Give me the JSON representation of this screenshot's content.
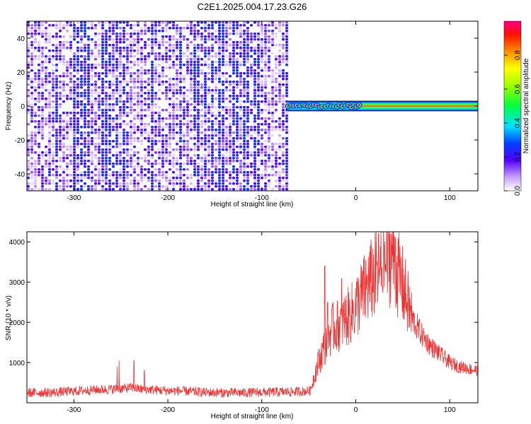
{
  "title": "C2E1.2025.004.17.23.G26",
  "chart_data": [
    {
      "type": "heatmap",
      "title": "C2E1.2025.004.17.23.G26",
      "xlabel": "Height of straight line (km)",
      "ylabel": "Frequency (Hz)",
      "xlim": [
        -350,
        130
      ],
      "ylim": [
        -50,
        50
      ],
      "x_ticks": [
        -300,
        -200,
        -100,
        0,
        100
      ],
      "y_ticks": [
        -40,
        -20,
        0,
        20,
        40
      ],
      "noise_region_x": [
        -350,
        -72
      ],
      "noise_level_range": [
        0.0,
        0.25
      ],
      "tracked_line": {
        "frequency": 0,
        "x_start": -72,
        "dots_x_range": [
          -72,
          5
        ],
        "dot_level": 1.0,
        "band_level": 0.55
      },
      "colorbar": {
        "label": "Normalized spectral amplitude",
        "range": [
          0.0,
          1.0
        ],
        "ticks": [
          0.0,
          0.2,
          0.4,
          0.6,
          0.8
        ]
      }
    },
    {
      "type": "line",
      "xlabel": "Height of straight line (km)",
      "ylabel": "SNR (10 * v/v)",
      "xlim": [
        -350,
        130
      ],
      "ylim": [
        0,
        4250
      ],
      "x_ticks": [
        -300,
        -200,
        -100,
        0,
        100
      ],
      "y_ticks": [
        1000,
        2000,
        3000,
        4000
      ],
      "color": "#f03232",
      "series": [
        {
          "x": [
            -350,
            -320,
            -300,
            -280,
            -260,
            -245,
            -238,
            -230,
            -220,
            -200,
            -180,
            -160,
            -140,
            -120,
            -100,
            -80,
            -60,
            -48,
            -45,
            -40,
            -35,
            -30,
            -28,
            -25,
            -20,
            -15,
            -10,
            -5,
            0,
            5,
            10,
            15,
            20,
            25,
            30,
            35,
            38,
            40,
            45,
            50,
            55,
            60,
            70,
            80,
            90,
            100,
            110,
            120,
            130
          ],
          "y": [
            250,
            260,
            290,
            320,
            340,
            360,
            380,
            340,
            330,
            300,
            290,
            260,
            250,
            250,
            260,
            270,
            280,
            300,
            600,
            1000,
            1300,
            1550,
            1700,
            1850,
            1900,
            2000,
            2100,
            2200,
            2400,
            2600,
            2800,
            3000,
            3150,
            3250,
            3400,
            3550,
            3800,
            3600,
            3200,
            2900,
            2500,
            2100,
            1700,
            1400,
            1200,
            1000,
            900,
            850,
            800
          ]
        }
      ],
      "spikes": [
        {
          "x": -254,
          "y": 900
        },
        {
          "x": -252,
          "y": 1050
        },
        {
          "x": -236,
          "y": 1050
        },
        {
          "x": -225,
          "y": 800
        },
        {
          "x": -33,
          "y": 3400
        },
        {
          "x": -30,
          "y": 2500
        },
        {
          "x": -15,
          "y": 3100
        },
        {
          "x": 22,
          "y": 3700
        },
        {
          "x": 30,
          "y": 3900
        },
        {
          "x": 38,
          "y": 4200
        },
        {
          "x": 42,
          "y": 4100
        }
      ]
    }
  ]
}
